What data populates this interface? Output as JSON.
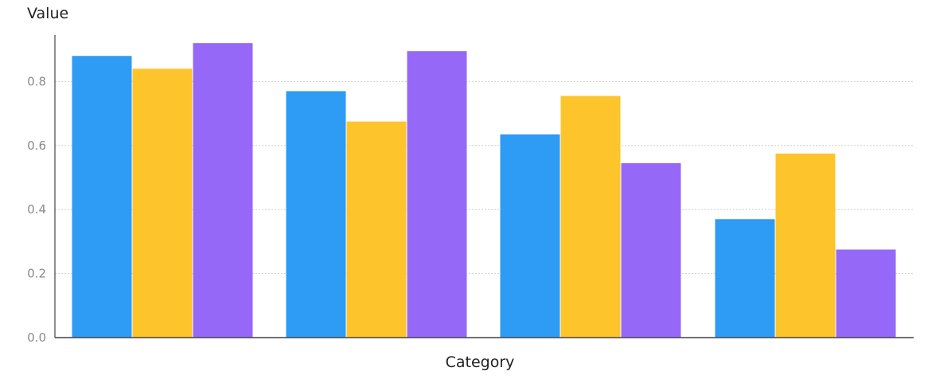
{
  "chart_data": {
    "type": "bar",
    "xlabel": "Category",
    "ylabel": "Value",
    "ylim": [
      0,
      0.9
    ],
    "yticks": [
      "0.0",
      "0.2",
      "0.4",
      "0.6",
      "0.8"
    ],
    "grid": "horizontal dotted",
    "categories": [
      "",
      "",
      "",
      ""
    ],
    "series": [
      {
        "color": "#2e9bf5",
        "values": [
          0.88,
          0.77,
          0.635,
          0.37
        ]
      },
      {
        "color": "#fdc42b",
        "values": [
          0.84,
          0.675,
          0.755,
          0.575
        ]
      },
      {
        "color": "#9568f7",
        "values": [
          0.92,
          0.895,
          0.545,
          0.275
        ]
      }
    ]
  }
}
